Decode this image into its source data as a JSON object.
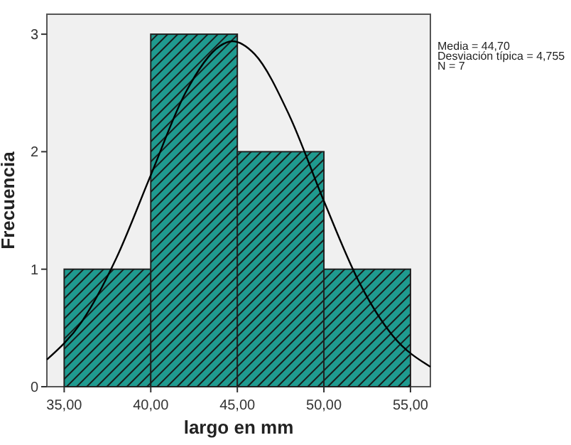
{
  "chart_data": {
    "type": "histogram",
    "xlabel": "largo en mm",
    "ylabel": "Frecuencia",
    "bins": [
      35,
      40,
      45,
      50,
      55
    ],
    "values": [
      1,
      3,
      2,
      1
    ],
    "color": "#1f9a8f",
    "series": [
      {
        "type": "line",
        "color": "#000000",
        "x": [
          34,
          36,
          38,
          40,
          42,
          44,
          44.7,
          46,
          48,
          50,
          52,
          54,
          56.15
        ],
        "values": [
          0.23,
          0.55,
          1.09,
          1.8,
          2.5,
          2.9,
          2.94,
          2.83,
          2.31,
          1.58,
          0.9,
          0.43,
          0.17
        ]
      }
    ],
    "xlim": [
      34,
      56.15
    ],
    "ylim": [
      0,
      3.17
    ],
    "xticks": [
      {
        "value": 35,
        "label": "35,00"
      },
      {
        "value": 40,
        "label": "40,00"
      },
      {
        "value": 45,
        "label": "45,00"
      },
      {
        "value": 50,
        "label": "50,00"
      },
      {
        "value": 55,
        "label": "55,00"
      }
    ],
    "yticks": [
      0,
      1,
      2,
      3
    ],
    "annotations": [
      "Media = 44,70",
      "Desviación típica = 4,755",
      "N = 7"
    ]
  }
}
